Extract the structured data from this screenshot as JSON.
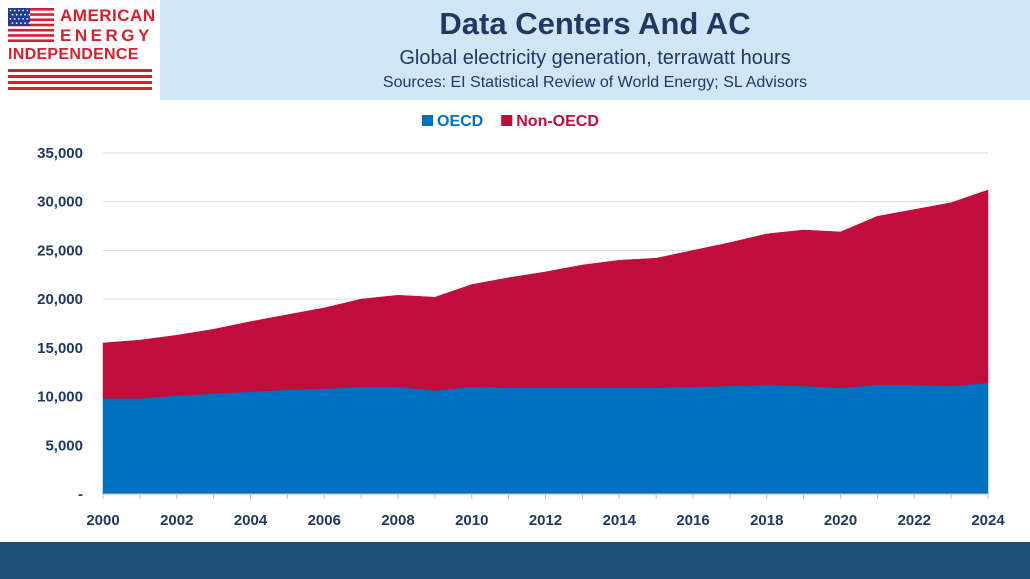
{
  "logo": {
    "line1": "AMERICAN",
    "line2": "ENERGY",
    "line3": "INDEPENDENCE"
  },
  "header": {
    "title": "Data Centers And AC",
    "subtitle": "Global electricity generation, terrawatt hours",
    "source": "Sources: EI Statistical Review of World Energy; SL Advisors"
  },
  "colors": {
    "oecd": "#0070c0",
    "non_oecd": "#c00d3c",
    "header_band": "#cfe6f7",
    "title_text": "#1f3864",
    "footer_band": "#1f4e79",
    "logo_red": "#d6202f",
    "logo_blue": "#1f3a93"
  },
  "chart_data": {
    "type": "area",
    "stacked": true,
    "title": "",
    "xlabel": "",
    "ylabel": "",
    "x": [
      2000,
      2001,
      2002,
      2003,
      2004,
      2005,
      2006,
      2007,
      2008,
      2009,
      2010,
      2011,
      2012,
      2013,
      2014,
      2015,
      2016,
      2017,
      2018,
      2019,
      2020,
      2021,
      2022,
      2023,
      2024
    ],
    "x_tick_labels": [
      "2000",
      "2002",
      "2004",
      "2006",
      "2008",
      "2010",
      "2012",
      "2014",
      "2016",
      "2018",
      "2020",
      "2022",
      "2024"
    ],
    "ylim": [
      0,
      35000
    ],
    "y_ticks": [
      0,
      5000,
      10000,
      15000,
      20000,
      25000,
      30000,
      35000
    ],
    "y_tick_labels": [
      "-",
      "5,000",
      "10,000",
      "15,000",
      "20,000",
      "25,000",
      "30,000",
      "35,000"
    ],
    "grid": true,
    "legend_position": "top-center",
    "series": [
      {
        "name": "OECD",
        "color": "#0070c0",
        "values": [
          9800,
          9800,
          10100,
          10300,
          10500,
          10700,
          10800,
          11000,
          11000,
          10600,
          11000,
          10900,
          10900,
          10900,
          10900,
          10900,
          11000,
          11100,
          11200,
          11100,
          10900,
          11200,
          11200,
          11100,
          11400
        ]
      },
      {
        "name": "Non-OECD",
        "color": "#c00d3c",
        "values": [
          5700,
          6000,
          6200,
          6600,
          7200,
          7700,
          8300,
          9000,
          9400,
          9600,
          10500,
          11300,
          11900,
          12600,
          13100,
          13300,
          14000,
          14700,
          15500,
          16000,
          16000,
          17300,
          18000,
          18800,
          19800
        ]
      }
    ]
  }
}
